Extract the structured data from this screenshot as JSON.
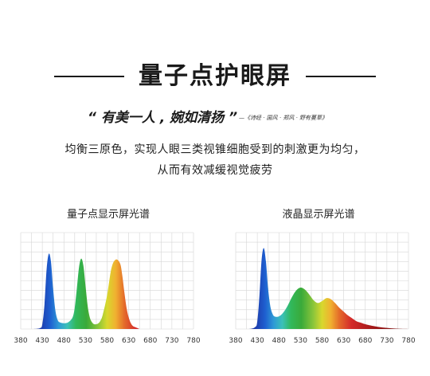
{
  "header": {
    "title": "量子点护眼屏"
  },
  "quote": {
    "text": "“ 有美一人 , 婉如清扬 ”",
    "source": "—《诗经 · 国风 · 郑风 · 野有蔓草》"
  },
  "description": {
    "line1": "均衡三原色，实现人眼三类视锥细胞受到的刺激更为均匀，",
    "line2": "从而有效减缓视觉疲劳"
  },
  "chart_data": [
    {
      "type": "area",
      "title": "量子点显示屏光谱",
      "xlabel": "",
      "ylabel": "",
      "x_ticks": [
        380,
        430,
        480,
        530,
        580,
        630,
        680,
        730,
        780
      ],
      "xlim": [
        380,
        780
      ],
      "ylim": [
        0,
        1
      ],
      "grid": true,
      "fill": "spectral-gradient",
      "x": [
        380,
        410,
        425,
        430,
        435,
        440,
        445,
        450,
        455,
        460,
        465,
        470,
        480,
        490,
        500,
        505,
        510,
        515,
        520,
        525,
        530,
        535,
        540,
        545,
        550,
        555,
        560,
        565,
        570,
        580,
        590,
        600,
        610,
        615,
        620,
        625,
        630,
        635,
        640,
        645,
        650,
        655,
        660,
        665,
        670,
        680,
        700,
        780
      ],
      "values": [
        0,
        0,
        0.01,
        0.05,
        0.25,
        0.62,
        0.78,
        0.7,
        0.42,
        0.2,
        0.1,
        0.07,
        0.06,
        0.07,
        0.12,
        0.22,
        0.42,
        0.64,
        0.73,
        0.66,
        0.45,
        0.24,
        0.12,
        0.07,
        0.05,
        0.05,
        0.06,
        0.09,
        0.15,
        0.35,
        0.63,
        0.72,
        0.68,
        0.56,
        0.38,
        0.22,
        0.12,
        0.06,
        0.03,
        0.02,
        0.01,
        0,
        0,
        0,
        0,
        0,
        0,
        0
      ]
    },
    {
      "type": "area",
      "title": "液晶显示屏光谱",
      "xlabel": "",
      "ylabel": "",
      "x_ticks": [
        380,
        430,
        480,
        530,
        580,
        630,
        680,
        730,
        780
      ],
      "xlim": [
        380,
        780
      ],
      "ylim": [
        0,
        1
      ],
      "grid": true,
      "fill": "spectral-gradient",
      "x": [
        380,
        410,
        425,
        430,
        435,
        440,
        445,
        450,
        455,
        460,
        465,
        470,
        480,
        490,
        500,
        510,
        520,
        530,
        540,
        550,
        560,
        570,
        580,
        590,
        600,
        610,
        620,
        630,
        640,
        650,
        660,
        670,
        680,
        700,
        720,
        740,
        760,
        780
      ],
      "values": [
        0,
        0,
        0.02,
        0.08,
        0.35,
        0.72,
        0.84,
        0.7,
        0.42,
        0.24,
        0.16,
        0.13,
        0.13,
        0.17,
        0.24,
        0.33,
        0.4,
        0.43,
        0.41,
        0.36,
        0.3,
        0.27,
        0.29,
        0.32,
        0.31,
        0.27,
        0.22,
        0.18,
        0.14,
        0.11,
        0.08,
        0.065,
        0.05,
        0.03,
        0.015,
        0.007,
        0.002,
        0
      ]
    }
  ]
}
